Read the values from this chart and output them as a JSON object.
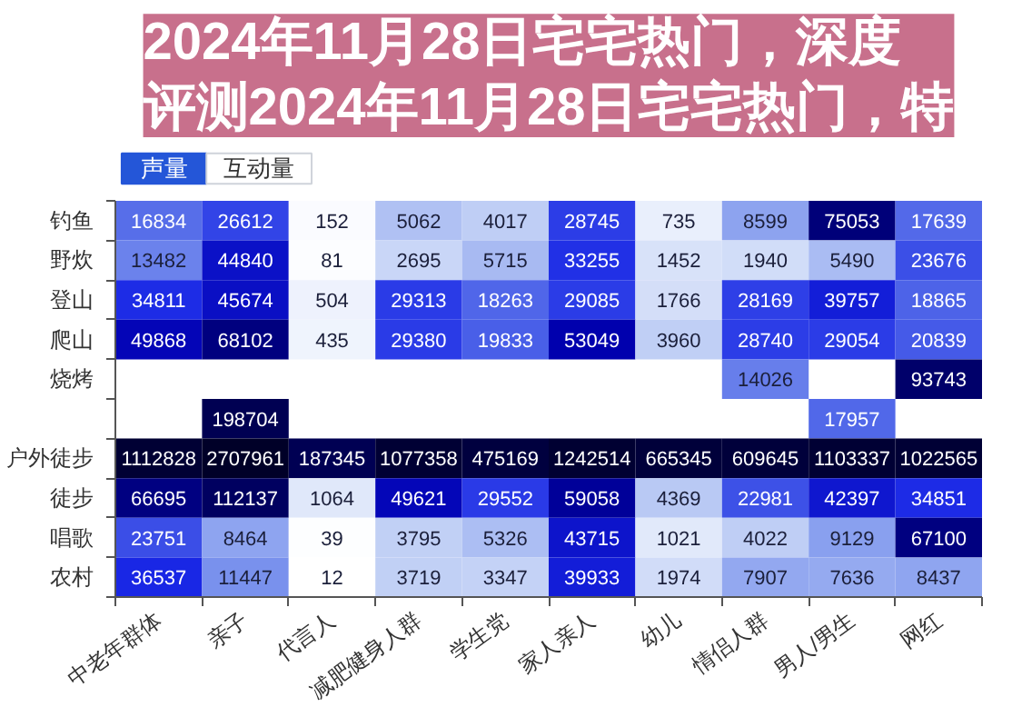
{
  "chart_data": {
    "type": "heatmap",
    "title": "2024年11月28日宅宅热门，深度评测2024年11月28日宅宅热门，特",
    "annotations": [
      "声量",
      "互动量"
    ],
    "categories": [
      "中老年群体",
      "亲子",
      "代言人",
      "减肥健身人群",
      "学生党",
      "家人亲人",
      "幼儿",
      "情侣人群",
      "男人/男生",
      "网红"
    ],
    "y_categories": [
      "钓鱼",
      "野炊",
      "登山",
      "爬山",
      "烧烤",
      null,
      "户外徒步",
      "徒步",
      "唱歌",
      "农村"
    ],
    "cells": [
      [
        16834,
        26612,
        152,
        5062,
        4017,
        28745,
        735,
        8599,
        75053,
        17639
      ],
      [
        13482,
        44840,
        81,
        2695,
        5715,
        33255,
        1452,
        1940,
        5490,
        23676
      ],
      [
        34811,
        45674,
        504,
        29313,
        18263,
        29085,
        1766,
        28169,
        39757,
        18865
      ],
      [
        49868,
        68102,
        435,
        29380,
        19833,
        53049,
        3960,
        28740,
        29054,
        20839
      ],
      [
        null,
        null,
        null,
        null,
        null,
        null,
        null,
        14026,
        null,
        93743
      ],
      [
        null,
        198704,
        null,
        null,
        null,
        null,
        null,
        null,
        17957,
        null
      ],
      [
        1112828,
        2707961,
        187345,
        1077358,
        475169,
        1242514,
        665345,
        609645,
        1103337,
        1022565
      ],
      [
        66695,
        112137,
        1064,
        49621,
        29552,
        59058,
        4369,
        22981,
        42397,
        34851
      ],
      [
        23751,
        8464,
        39,
        3795,
        5326,
        43715,
        1021,
        4022,
        9129,
        67100
      ],
      [
        36537,
        11447,
        12,
        3719,
        3347,
        39933,
        1974,
        7907,
        7636,
        8437
      ]
    ],
    "data_labels": true
  }
}
